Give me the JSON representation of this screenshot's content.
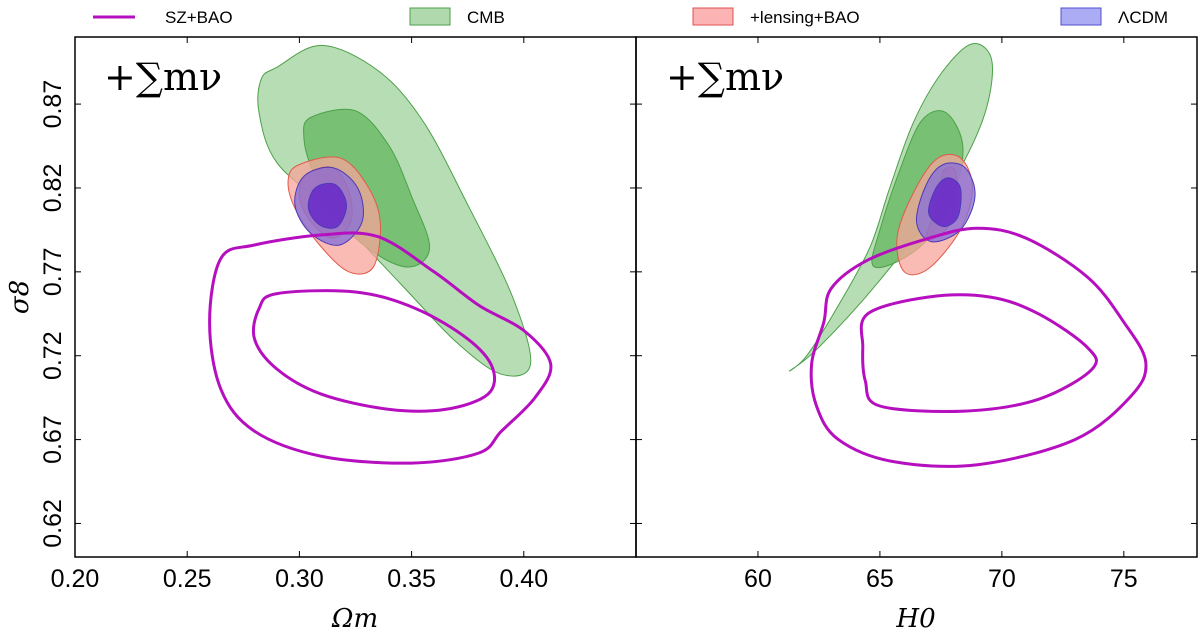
{
  "chart_data": [
    {
      "type": "contour",
      "panel": "left",
      "title": "",
      "xlabel": "Ωm",
      "ylabel": "σ8",
      "annotation": "+∑mν",
      "xlim": [
        0.2,
        0.45
      ],
      "ylim": [
        0.6,
        0.91
      ],
      "xticks": [
        0.2,
        0.25,
        0.3,
        0.35,
        0.4
      ],
      "xtick_labels": [
        "0.20",
        "0.25",
        "0.30",
        "0.35",
        "0.40"
      ],
      "yticks": [
        0.62,
        0.67,
        0.72,
        0.77,
        0.82,
        0.87
      ],
      "ytick_labels": [
        "0.62",
        "0.67",
        "0.72",
        "0.77",
        "0.82",
        "0.87"
      ],
      "series": [
        {
          "name": "CMB",
          "level": "95%",
          "points": [
            [
              0.29,
              0.892
            ],
            [
              0.31,
              0.905
            ],
            [
              0.335,
              0.89
            ],
            [
              0.355,
              0.86
            ],
            [
              0.375,
              0.81
            ],
            [
              0.395,
              0.755
            ],
            [
              0.403,
              0.715
            ],
            [
              0.39,
              0.709
            ],
            [
              0.37,
              0.728
            ],
            [
              0.345,
              0.763
            ],
            [
              0.315,
              0.805
            ],
            [
              0.29,
              0.835
            ],
            [
              0.282,
              0.865
            ],
            [
              0.283,
              0.885
            ]
          ]
        },
        {
          "name": "CMB",
          "level": "68%",
          "points": [
            [
              0.305,
              0.862
            ],
            [
              0.325,
              0.866
            ],
            [
              0.34,
              0.845
            ],
            [
              0.35,
              0.815
            ],
            [
              0.358,
              0.785
            ],
            [
              0.35,
              0.773
            ],
            [
              0.335,
              0.78
            ],
            [
              0.318,
              0.8
            ],
            [
              0.306,
              0.83
            ],
            [
              0.302,
              0.85
            ]
          ]
        },
        {
          "name": "+lensing+BAO",
          "level": "95%",
          "points": [
            [
              0.3,
              0.834
            ],
            [
              0.318,
              0.838
            ],
            [
              0.33,
              0.822
            ],
            [
              0.336,
              0.8
            ],
            [
              0.333,
              0.773
            ],
            [
              0.322,
              0.77
            ],
            [
              0.309,
              0.786
            ],
            [
              0.298,
              0.808
            ],
            [
              0.295,
              0.825
            ]
          ]
        },
        {
          "name": "+lensing+BAO",
          "level": "68%",
          "points": [
            [
              0.303,
              0.828
            ],
            [
              0.315,
              0.832
            ],
            [
              0.322,
              0.818
            ],
            [
              0.323,
              0.8
            ],
            [
              0.315,
              0.79
            ],
            [
              0.305,
              0.8
            ],
            [
              0.3,
              0.815
            ]
          ]
        },
        {
          "name": "ΛCDM",
          "level": "95%",
          "points": [
            [
              0.302,
              0.827
            ],
            [
              0.315,
              0.832
            ],
            [
              0.326,
              0.82
            ],
            [
              0.328,
              0.8
            ],
            [
              0.318,
              0.786
            ],
            [
              0.305,
              0.793
            ],
            [
              0.298,
              0.81
            ]
          ]
        },
        {
          "name": "ΛCDM",
          "level": "68%",
          "points": [
            [
              0.307,
              0.82
            ],
            [
              0.316,
              0.822
            ],
            [
              0.321,
              0.81
            ],
            [
              0.317,
              0.797
            ],
            [
              0.309,
              0.798
            ],
            [
              0.304,
              0.808
            ]
          ]
        },
        {
          "name": "SZ+BAO",
          "level": "95%",
          "points": [
            [
              0.265,
              0.778
            ],
            [
              0.28,
              0.786
            ],
            [
              0.31,
              0.792
            ],
            [
              0.335,
              0.791
            ],
            [
              0.36,
              0.77
            ],
            [
              0.38,
              0.75
            ],
            [
              0.4,
              0.735
            ],
            [
              0.412,
              0.715
            ],
            [
              0.405,
              0.695
            ],
            [
              0.39,
              0.675
            ],
            [
              0.38,
              0.662
            ],
            [
              0.35,
              0.656
            ],
            [
              0.31,
              0.66
            ],
            [
              0.28,
              0.675
            ],
            [
              0.265,
              0.7
            ],
            [
              0.26,
              0.74
            ]
          ]
        },
        {
          "name": "SZ+BAO",
          "level": "68%",
          "points": [
            [
              0.29,
              0.757
            ],
            [
              0.325,
              0.758
            ],
            [
              0.352,
              0.748
            ],
            [
              0.375,
              0.73
            ],
            [
              0.386,
              0.713
            ],
            [
              0.384,
              0.697
            ],
            [
              0.365,
              0.688
            ],
            [
              0.34,
              0.688
            ],
            [
              0.31,
              0.697
            ],
            [
              0.29,
              0.712
            ],
            [
              0.28,
              0.73
            ],
            [
              0.282,
              0.748
            ]
          ]
        }
      ]
    },
    {
      "type": "contour",
      "panel": "right",
      "title": "",
      "xlabel": "H0",
      "ylabel": "",
      "annotation": "+∑mν",
      "xlim": [
        55.0,
        78.0
      ],
      "ylim": [
        0.6,
        0.91
      ],
      "xticks": [
        60,
        65,
        70,
        75
      ],
      "xtick_labels": [
        "60",
        "65",
        "70",
        "75"
      ],
      "series": [
        {
          "name": "CMB",
          "level": "95%",
          "points": [
            [
              61.3,
              0.711
            ],
            [
              62.0,
              0.72
            ],
            [
              63.3,
              0.75
            ],
            [
              64.6,
              0.785
            ],
            [
              65.4,
              0.82
            ],
            [
              66.4,
              0.86
            ],
            [
              67.6,
              0.89
            ],
            [
              68.8,
              0.906
            ],
            [
              69.6,
              0.895
            ],
            [
              69.2,
              0.86
            ],
            [
              67.6,
              0.815
            ],
            [
              65.0,
              0.765
            ],
            [
              62.5,
              0.725
            ]
          ]
        },
        {
          "name": "CMB",
          "level": "68%",
          "points": [
            [
              64.7,
              0.774
            ],
            [
              65.0,
              0.795
            ],
            [
              65.8,
              0.83
            ],
            [
              66.7,
              0.86
            ],
            [
              67.7,
              0.865
            ],
            [
              68.4,
              0.845
            ],
            [
              68.0,
              0.815
            ],
            [
              67.0,
              0.79
            ],
            [
              65.7,
              0.776
            ]
          ]
        },
        {
          "name": "+lensing+BAO",
          "level": "95%",
          "points": [
            [
              66.0,
              0.77
            ],
            [
              65.7,
              0.79
            ],
            [
              66.3,
              0.815
            ],
            [
              67.3,
              0.837
            ],
            [
              68.3,
              0.838
            ],
            [
              68.8,
              0.82
            ],
            [
              68.3,
              0.795
            ],
            [
              67.0,
              0.772
            ]
          ]
        },
        {
          "name": "+lensing+BAO",
          "level": "68%",
          "points": [
            [
              66.9,
              0.79
            ],
            [
              67.4,
              0.812
            ],
            [
              67.6,
              0.83
            ],
            [
              68.1,
              0.83
            ],
            [
              68.1,
              0.812
            ],
            [
              67.7,
              0.795
            ]
          ]
        },
        {
          "name": "ΛCDM",
          "level": "95%",
          "points": [
            [
              66.5,
              0.8
            ],
            [
              66.9,
              0.822
            ],
            [
              67.6,
              0.834
            ],
            [
              68.5,
              0.832
            ],
            [
              68.9,
              0.815
            ],
            [
              68.3,
              0.795
            ],
            [
              67.1,
              0.788
            ]
          ]
        },
        {
          "name": "ΛCDM",
          "level": "68%",
          "points": [
            [
              67.0,
              0.805
            ],
            [
              67.3,
              0.82
            ],
            [
              67.8,
              0.826
            ],
            [
              68.3,
              0.82
            ],
            [
              68.2,
              0.803
            ],
            [
              67.6,
              0.797
            ]
          ]
        },
        {
          "name": "SZ+BAO",
          "level": "95%",
          "points": [
            [
              62.2,
              0.715
            ],
            [
              62.7,
              0.74
            ],
            [
              63.0,
              0.76
            ],
            [
              64.5,
              0.777
            ],
            [
              67.0,
              0.79
            ],
            [
              69.0,
              0.796
            ],
            [
              71.0,
              0.79
            ],
            [
              73.5,
              0.767
            ],
            [
              75.0,
              0.74
            ],
            [
              75.9,
              0.716
            ],
            [
              75.3,
              0.696
            ],
            [
              73.0,
              0.67
            ],
            [
              69.0,
              0.655
            ],
            [
              65.5,
              0.657
            ],
            [
              63.3,
              0.67
            ],
            [
              62.4,
              0.69
            ]
          ]
        },
        {
          "name": "SZ+BAO",
          "level": "68%",
          "points": [
            [
              64.5,
              0.745
            ],
            [
              67.0,
              0.755
            ],
            [
              69.5,
              0.755
            ],
            [
              71.5,
              0.745
            ],
            [
              73.5,
              0.725
            ],
            [
              73.7,
              0.712
            ],
            [
              71.5,
              0.694
            ],
            [
              68.5,
              0.687
            ],
            [
              65.0,
              0.69
            ],
            [
              64.4,
              0.705
            ],
            [
              64.3,
              0.725
            ]
          ]
        }
      ]
    }
  ],
  "legend": [
    {
      "label": "SZ+BAO",
      "kind": "line",
      "color": "#b60fbf"
    },
    {
      "label": "CMB",
      "kind": "fill",
      "fill": "#86c682",
      "stroke": "#4ca048"
    },
    {
      "label": "+lensing+BAO",
      "kind": "fill",
      "fill": "#fa8a8a",
      "stroke": "#e05050"
    },
    {
      "label": "ΛCDM",
      "kind": "fill",
      "fill": "#8080f0",
      "stroke": "#5050d0"
    }
  ],
  "colors": {
    "sz_line": "#b60fbf",
    "cmb_outer": "#b3dbb0",
    "cmb_inner": "#6dbb69",
    "cmb_stroke": "#4ca048",
    "lens_outer": "#f7a499",
    "lens_inner": "#f07a70",
    "lens_stroke": "#e05a4a",
    "lcdm_outer": "#8a72d6",
    "lcdm_inner": "#6a2cc8",
    "lcdm_stroke": "#4c3ab8"
  }
}
